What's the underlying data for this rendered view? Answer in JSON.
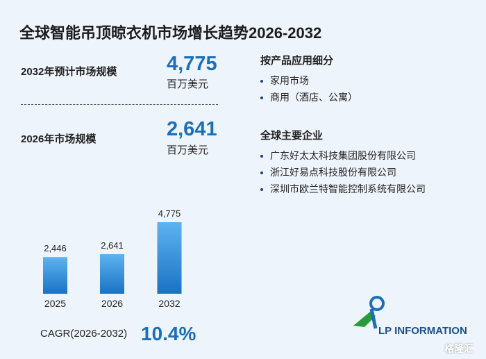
{
  "title": "全球智能吊顶晾衣机市场增长趋势2026-2032",
  "stats": [
    {
      "label": "2032年预计市场规模",
      "value": "4,775",
      "unit": "百万美元"
    },
    {
      "label": "2026年市场规模",
      "value": "2,641",
      "unit": "百万美元"
    }
  ],
  "segments": {
    "heading": "按产品应用细分",
    "items": [
      "家用市场",
      "商用（酒店、公寓）"
    ]
  },
  "companies": {
    "heading": "全球主要企业",
    "items": [
      "广东好太太科技集团股份有限公司",
      "浙江好易点科技股份有限公司",
      "深圳市欧兰特智能控制系统有限公司"
    ]
  },
  "chart_data": {
    "type": "bar",
    "categories": [
      "2025",
      "2026",
      "2032"
    ],
    "values": [
      2446,
      2641,
      4775
    ],
    "value_labels": [
      "2,446",
      "2,641",
      "4,775"
    ]
  },
  "cagr": {
    "label": "CAGR(2026-2032)",
    "value": "10.4%"
  },
  "logo": "LP INFORMATION",
  "watermark": "格隆汇"
}
